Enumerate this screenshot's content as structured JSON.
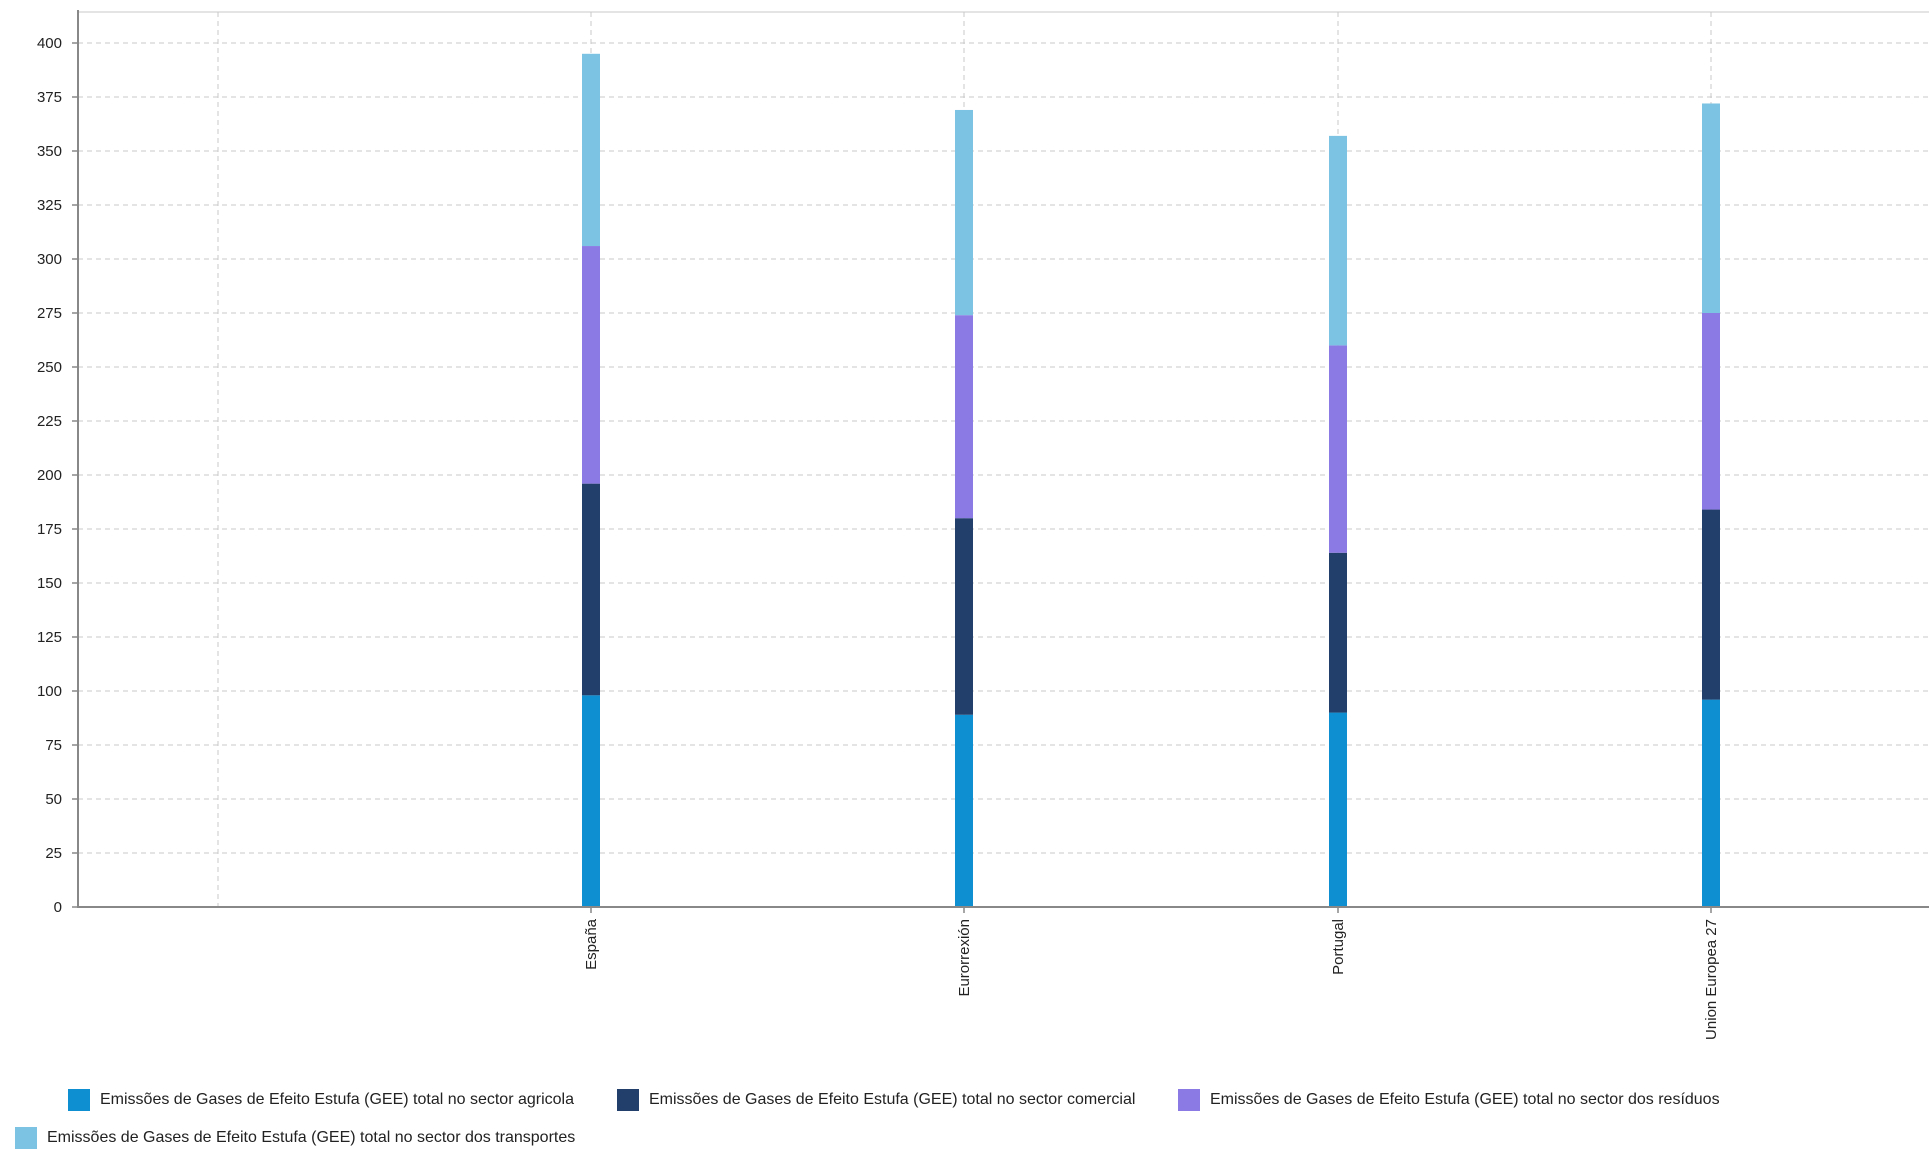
{
  "chart_data": {
    "type": "bar",
    "stacked": true,
    "title": "",
    "xlabel": "",
    "ylabel": "",
    "ylim": [
      0,
      400
    ],
    "yticks": [
      0,
      25,
      50,
      75,
      100,
      125,
      150,
      175,
      200,
      225,
      250,
      275,
      300,
      325,
      350,
      375,
      400
    ],
    "grid": true,
    "legend_position": "bottom",
    "categories": [
      "",
      "España",
      "Eurorrexión",
      "Portugal",
      "Union Europea 27"
    ],
    "series": [
      {
        "name": "Emissões de Gases de Efeito Estufa (GEE) total no sector agricola",
        "color": "#0d8fd1",
        "values": [
          null,
          98,
          89,
          90,
          96
        ]
      },
      {
        "name": "Emissões de Gases de Efeito Estufa (GEE) total no sector comercial",
        "color": "#223f6b",
        "values": [
          null,
          98,
          91,
          74,
          88
        ]
      },
      {
        "name": "Emissões de Gases de Efeito Estufa (GEE) total no sector dos resíduos",
        "color": "#8b7ae3",
        "values": [
          null,
          110,
          94,
          96,
          91
        ]
      },
      {
        "name": "Emissões de Gases de Efeito Estufa (GEE) total no sector dos transportes",
        "color": "#7cc2e3",
        "values": [
          null,
          89,
          95,
          97,
          97
        ]
      }
    ]
  }
}
